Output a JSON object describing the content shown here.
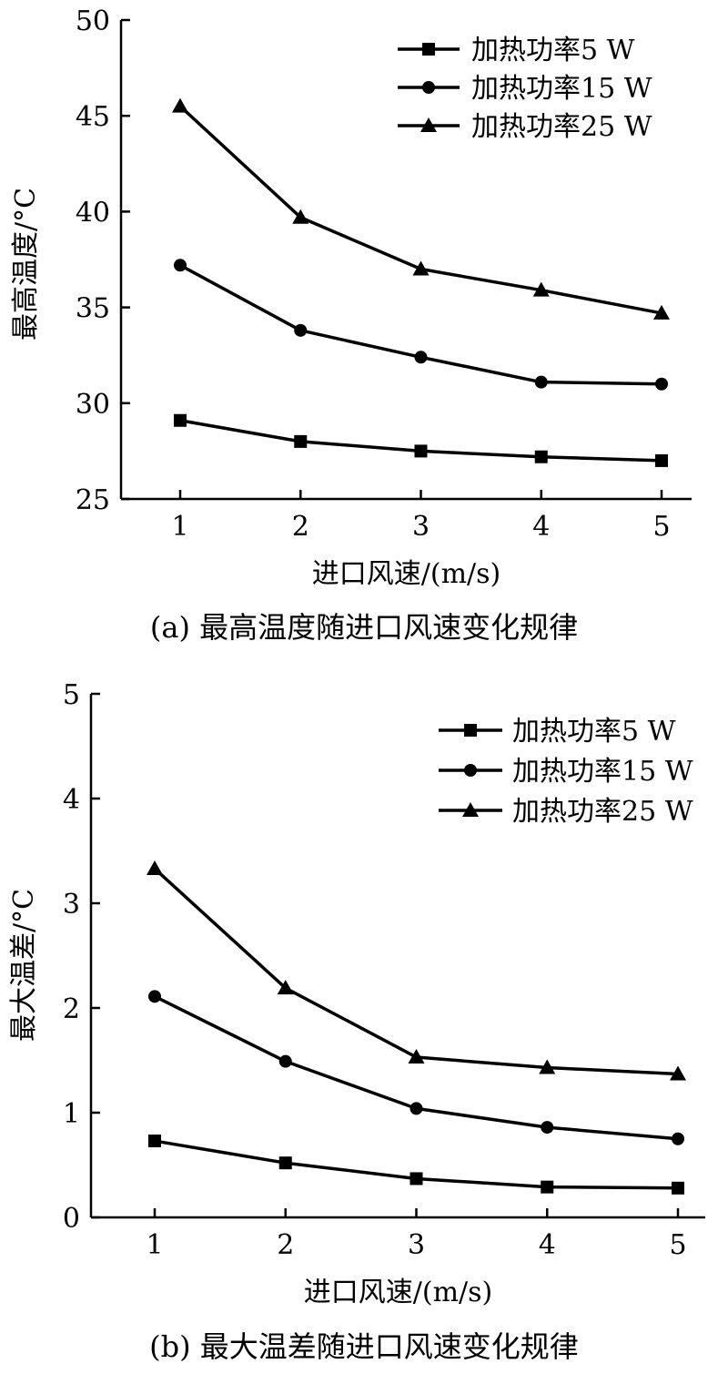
{
  "chart_data": [
    {
      "type": "line",
      "caption": "(a) 最高温度随进口风速变化规律",
      "xlabel": "进口风速/(m/s)",
      "ylabel": "最高温度/°C",
      "x": [
        1,
        2,
        3,
        4,
        5
      ],
      "xticks": [
        "1",
        "2",
        "3",
        "4",
        "5"
      ],
      "ylim": [
        25,
        50
      ],
      "yticks": [
        "25",
        "30",
        "35",
        "40",
        "45",
        "50"
      ],
      "grid": false,
      "legend_position": "top-right",
      "series": [
        {
          "name": "加热功率5 W",
          "marker": "square",
          "values": [
            29.1,
            28.0,
            27.5,
            27.2,
            27.0
          ]
        },
        {
          "name": "加热功率15 W",
          "marker": "circle",
          "values": [
            37.2,
            33.8,
            32.4,
            31.1,
            31.0
          ]
        },
        {
          "name": "加热功率25 W",
          "marker": "triangle",
          "values": [
            45.5,
            39.7,
            37.0,
            35.9,
            34.7
          ]
        }
      ]
    },
    {
      "type": "line",
      "caption": "(b) 最大温差随进口风速变化规律",
      "xlabel": "进口风速/(m/s)",
      "ylabel": "最大温差/°C",
      "x": [
        1,
        2,
        3,
        4,
        5
      ],
      "xticks": [
        "1",
        "2",
        "3",
        "4",
        "5"
      ],
      "ylim": [
        0,
        5
      ],
      "yticks": [
        "0",
        "1",
        "2",
        "3",
        "4",
        "5"
      ],
      "grid": false,
      "legend_position": "top-right",
      "series": [
        {
          "name": "加热功率5 W",
          "marker": "square",
          "values": [
            0.73,
            0.52,
            0.37,
            0.29,
            0.28
          ]
        },
        {
          "name": "加热功率15 W",
          "marker": "circle",
          "values": [
            2.11,
            1.49,
            1.04,
            0.86,
            0.75
          ]
        },
        {
          "name": "加热功率25 W",
          "marker": "triangle",
          "values": [
            3.33,
            2.19,
            1.53,
            1.43,
            1.37
          ]
        }
      ]
    }
  ]
}
